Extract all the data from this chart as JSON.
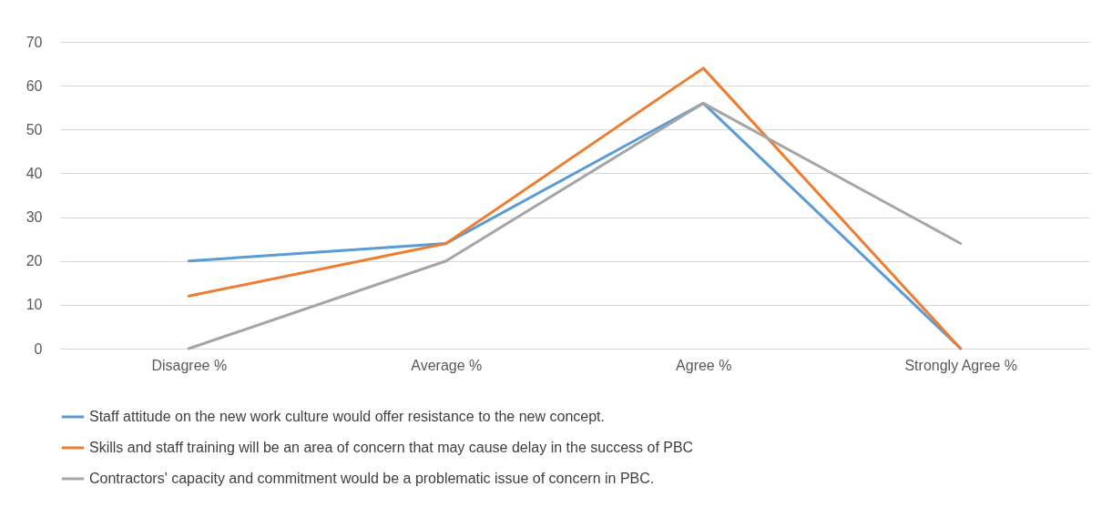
{
  "chart_data": {
    "type": "line",
    "categories": [
      "Disagree %",
      "Average %",
      "Agree %",
      "Strongly Agree %"
    ],
    "series": [
      {
        "name": "Staff attitude on the new work culture would offer resistance to the new concept.",
        "color": "#5b9bd5",
        "values": [
          20,
          24,
          56,
          0
        ]
      },
      {
        "name": "Skills and staff training will be an area of concern that may cause delay in the success of PBC",
        "color": "#ed7d31",
        "values": [
          12,
          24,
          64,
          0
        ]
      },
      {
        "name": "Contractors' capacity and commitment would be a problematic issue of concern in PBC.",
        "color": "#a5a5a5",
        "values": [
          0,
          20,
          56,
          24
        ]
      }
    ],
    "ylim": [
      0,
      70
    ],
    "yticks": [
      0,
      10,
      20,
      30,
      40,
      50,
      60,
      70
    ],
    "grid": "y",
    "legend": "bottom",
    "marker": "none",
    "line_style": "solid"
  }
}
